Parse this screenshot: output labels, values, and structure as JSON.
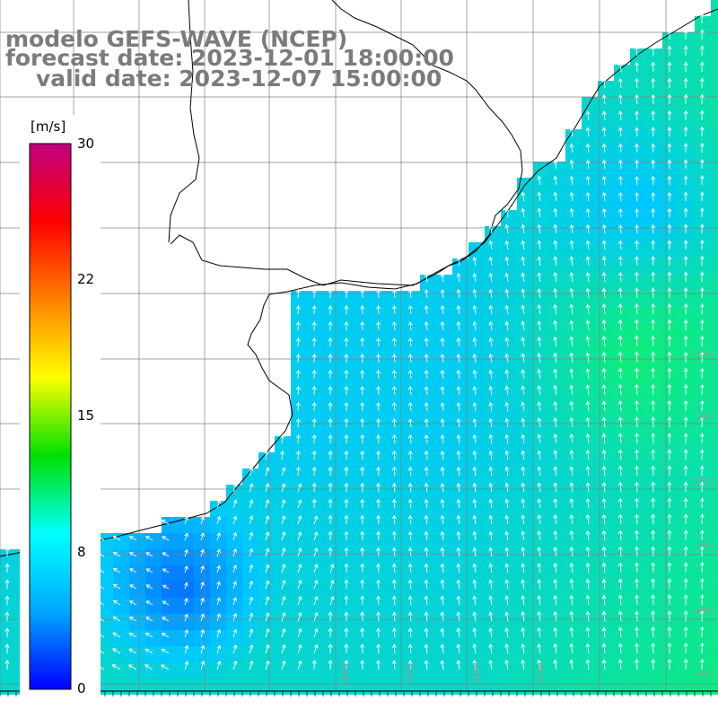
{
  "title": {
    "line1": "modelo GEFS-WAVE (NCEP)",
    "line2": "forecast date: 2023-12-01 18:00:00",
    "line3": "valid date: 2023-12-07 15:00:00"
  },
  "colorbar": {
    "unit": "[m/s]",
    "ticks": [
      "30",
      "22",
      "15",
      "8",
      "0"
    ],
    "range": [
      0,
      30
    ],
    "colors": [
      "#0000ff",
      "#00a8ff",
      "#00ffff",
      "#00e000",
      "#ffff00",
      "#ff8000",
      "#ff0000",
      "#c00080"
    ]
  },
  "lat_labels": [
    "35S",
    "36S",
    "37S",
    "38S",
    "39S",
    "40S"
  ],
  "lon_labels": [
    "60W",
    "59W",
    "58W",
    "57W"
  ],
  "colors": {
    "ocean_low": "#0a3cff",
    "ocean_mid": "#00c8ff",
    "ocean_high": "#10f070",
    "land": "#ffffff",
    "grid": "#808080",
    "coast": "#000000",
    "arrow": "#ffffff",
    "title_text": "#7b7b7b"
  }
}
